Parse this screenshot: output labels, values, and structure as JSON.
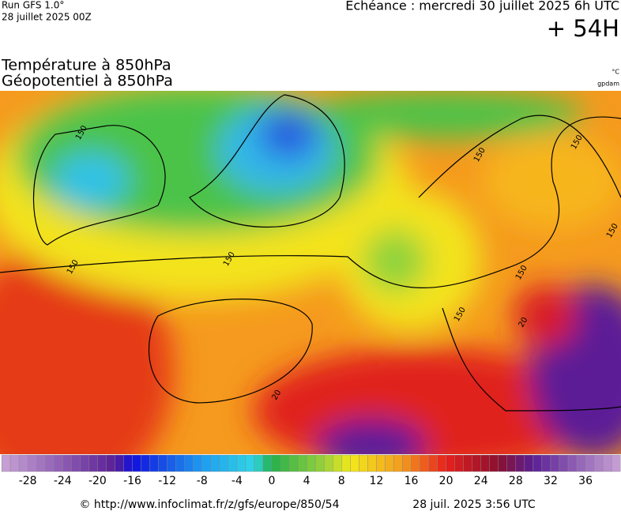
{
  "header": {
    "run": "Run GFS 1.0°",
    "run_date": "28 juillet 2025 00Z",
    "valid": "Echéance : mercredi 30 juillet 2025 6h UTC",
    "lead": "+ 54H"
  },
  "titles": {
    "temperature": "Température à 850hPa",
    "geopotential": "Géopotentiel à 850hPa",
    "temp_unit": "°C",
    "geo_unit": "gpdam"
  },
  "map": {
    "contour_labels": [
      "150",
      "150",
      "150",
      "150",
      "150",
      "150",
      "150",
      "150",
      "20",
      "20"
    ]
  },
  "colorbar": {
    "ticks": [
      -28,
      -24,
      -20,
      -16,
      -12,
      -8,
      -4,
      0,
      4,
      8,
      12,
      16,
      20,
      24,
      28,
      32,
      36
    ]
  },
  "footer": {
    "url": "© http://www.infoclimat.fr/z/gfs/europe/850/54",
    "date": "28 juil. 2025  3:56 UTC"
  }
}
